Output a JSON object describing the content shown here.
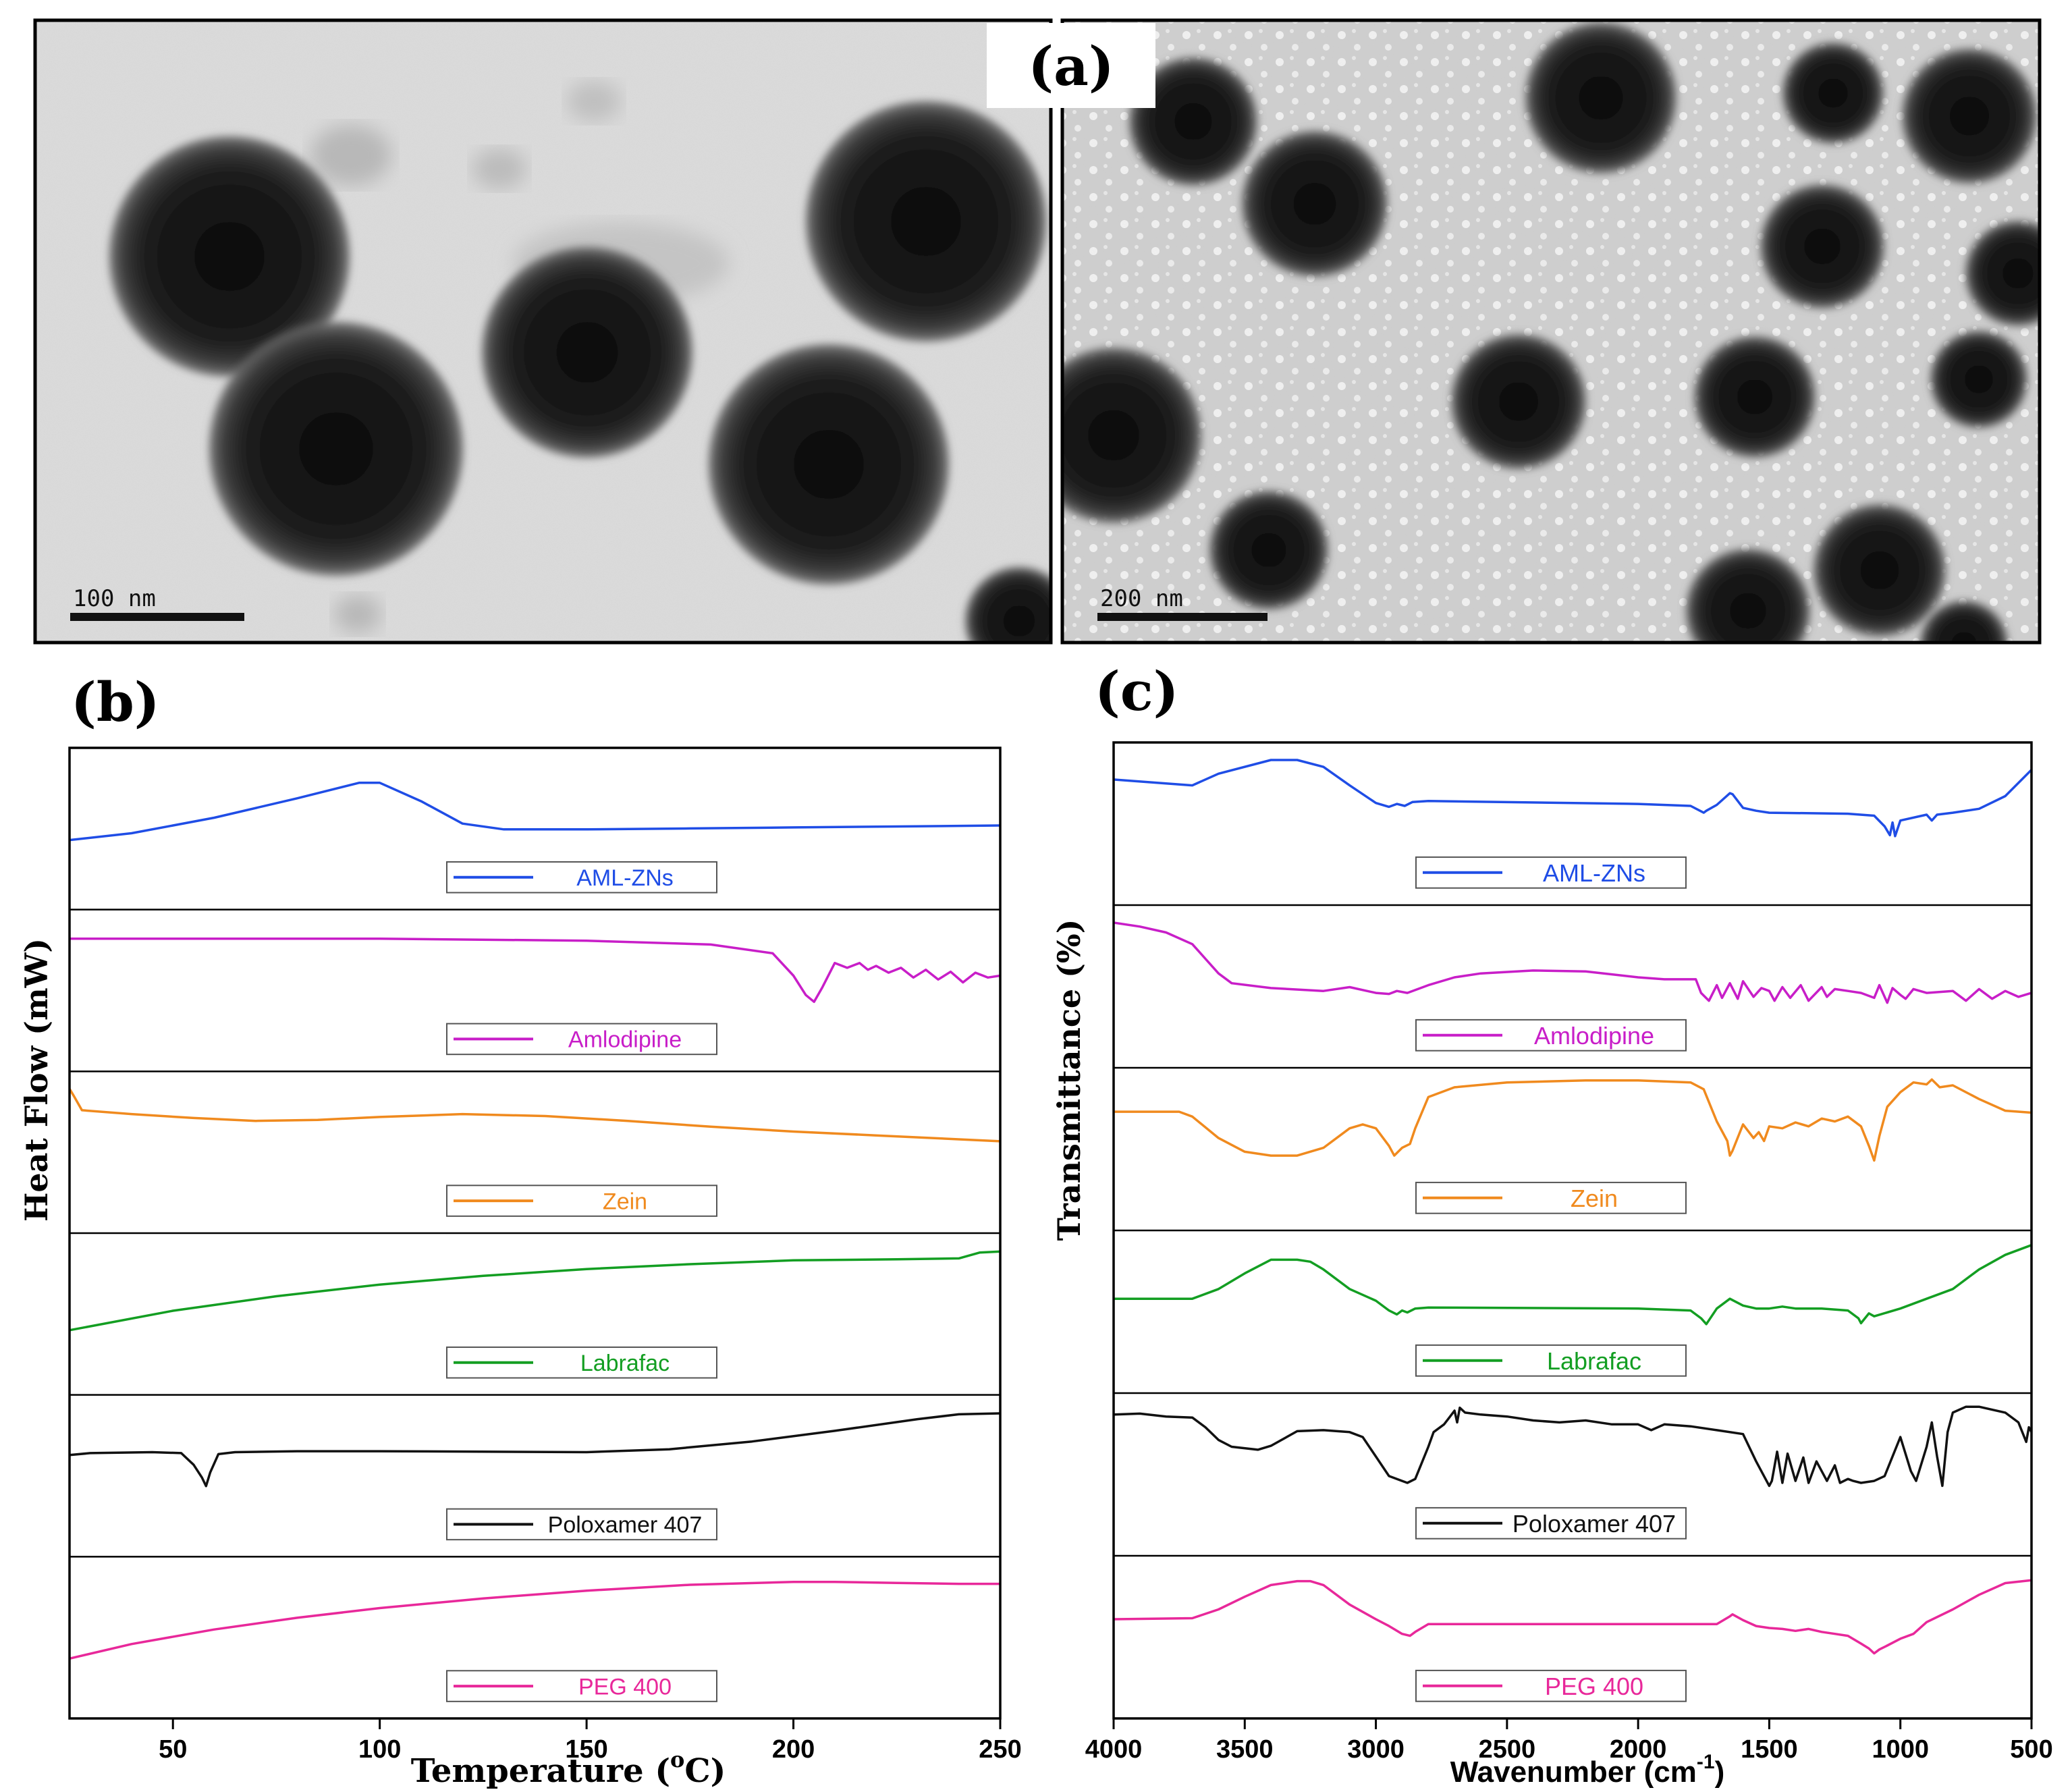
{
  "figure": {
    "panel_a": {
      "label": "(a)",
      "scale_bar_left": "100 nm",
      "scale_bar_right": "200 nm"
    }
  },
  "chart_data": [
    {
      "type": "line",
      "panel_label": "(b)",
      "title": "",
      "xlabel": "Temperature (",
      "xlabel_sup": "o",
      "xlabel_tail": "C)",
      "ylabel": "Heat Flow (mW)",
      "xlim": [
        25,
        250
      ],
      "xticks": [
        50,
        100,
        150,
        200,
        250
      ],
      "stacked": true,
      "series": [
        {
          "name": "AML-ZNs",
          "color": "#1f4de6",
          "x": [
            25,
            40,
            60,
            80,
            95,
            100,
            110,
            120,
            130,
            150,
            175,
            200,
            225,
            250
          ],
          "y": [
            0.15,
            0.22,
            0.38,
            0.58,
            0.74,
            0.74,
            0.55,
            0.32,
            0.26,
            0.26,
            0.27,
            0.28,
            0.29,
            0.3
          ]
        },
        {
          "name": "Amlodipine",
          "color": "#c81ec8",
          "x": [
            25,
            60,
            100,
            150,
            180,
            195,
            200,
            203,
            205,
            207,
            210,
            213,
            216,
            218,
            220,
            223,
            226,
            229,
            232,
            235,
            238,
            241,
            244,
            247,
            250
          ],
          "y": [
            0.8,
            0.8,
            0.8,
            0.78,
            0.74,
            0.65,
            0.42,
            0.22,
            0.15,
            0.3,
            0.55,
            0.5,
            0.55,
            0.48,
            0.52,
            0.45,
            0.5,
            0.4,
            0.48,
            0.38,
            0.46,
            0.35,
            0.45,
            0.4,
            0.42
          ]
        },
        {
          "name": "Zein",
          "color": "#f08a1e",
          "x": [
            25,
            26,
            28,
            40,
            55,
            70,
            85,
            100,
            120,
            140,
            160,
            180,
            200,
            220,
            240,
            250
          ],
          "y": [
            0.92,
            0.85,
            0.7,
            0.66,
            0.62,
            0.59,
            0.6,
            0.63,
            0.66,
            0.64,
            0.59,
            0.53,
            0.48,
            0.44,
            0.4,
            0.38
          ]
        },
        {
          "name": "Labrafac",
          "color": "#139e22",
          "x": [
            25,
            50,
            75,
            100,
            125,
            150,
            175,
            200,
            225,
            240,
            245,
            250
          ],
          "y": [
            0.1,
            0.3,
            0.45,
            0.57,
            0.66,
            0.73,
            0.78,
            0.82,
            0.83,
            0.84,
            0.9,
            0.91
          ]
        },
        {
          "name": "Poloxamer 407",
          "color": "#111111",
          "x": [
            25,
            30,
            45,
            52,
            55,
            57,
            58,
            59,
            61,
            65,
            80,
            100,
            150,
            170,
            190,
            210,
            230,
            240,
            250
          ],
          "y": [
            0.48,
            0.5,
            0.51,
            0.5,
            0.38,
            0.25,
            0.16,
            0.3,
            0.49,
            0.51,
            0.52,
            0.52,
            0.51,
            0.54,
            0.62,
            0.73,
            0.85,
            0.9,
            0.91
          ]
        },
        {
          "name": "PEG 400",
          "color": "#e8289a",
          "x": [
            25,
            40,
            60,
            80,
            100,
            125,
            150,
            175,
            200,
            210,
            225,
            240,
            250
          ],
          "y": [
            0.05,
            0.2,
            0.35,
            0.47,
            0.57,
            0.67,
            0.75,
            0.81,
            0.84,
            0.84,
            0.83,
            0.82,
            0.82
          ]
        }
      ]
    },
    {
      "type": "line",
      "panel_label": "(c)",
      "title": "",
      "xlabel": "Wavenumber (cm",
      "xlabel_sup": "-1",
      "xlabel_tail": ")",
      "ylabel": "Transmittance (%)",
      "xlim": [
        4000,
        500
      ],
      "xticks": [
        4000,
        3500,
        3000,
        2500,
        2000,
        1500,
        1000,
        500
      ],
      "stacked": true,
      "series": [
        {
          "name": "AML-ZNs",
          "color": "#1f4de6",
          "x": [
            4000,
            3800,
            3700,
            3600,
            3400,
            3300,
            3200,
            3100,
            3000,
            2950,
            2920,
            2890,
            2860,
            2800,
            2000,
            1800,
            1750,
            1740,
            1700,
            1650,
            1640,
            1600,
            1550,
            1500,
            1200,
            1100,
            1060,
            1040,
            1030,
            1020,
            1000,
            900,
            880,
            860,
            800,
            700,
            600,
            500
          ],
          "y": [
            0.72,
            0.68,
            0.66,
            0.78,
            0.92,
            0.92,
            0.85,
            0.66,
            0.48,
            0.44,
            0.47,
            0.45,
            0.49,
            0.5,
            0.47,
            0.45,
            0.38,
            0.4,
            0.46,
            0.58,
            0.57,
            0.43,
            0.4,
            0.38,
            0.37,
            0.35,
            0.24,
            0.15,
            0.28,
            0.14,
            0.3,
            0.36,
            0.3,
            0.36,
            0.38,
            0.42,
            0.55,
            0.82
          ]
        },
        {
          "name": "Amlodipine",
          "color": "#c81ec8",
          "x": [
            4000,
            3900,
            3800,
            3700,
            3650,
            3600,
            3550,
            3400,
            3200,
            3100,
            3000,
            2950,
            2920,
            2880,
            2800,
            2700,
            2600,
            2400,
            2200,
            2000,
            1900,
            1780,
            1760,
            1730,
            1700,
            1680,
            1650,
            1620,
            1600,
            1560,
            1530,
            1500,
            1480,
            1450,
            1420,
            1380,
            1350,
            1300,
            1280,
            1250,
            1200,
            1150,
            1100,
            1080,
            1050,
            1030,
            1000,
            980,
            950,
            900,
            800,
            750,
            700,
            650,
            600,
            550,
            500
          ],
          "y": [
            0.92,
            0.88,
            0.82,
            0.7,
            0.55,
            0.4,
            0.3,
            0.25,
            0.22,
            0.26,
            0.2,
            0.19,
            0.22,
            0.2,
            0.28,
            0.36,
            0.4,
            0.43,
            0.42,
            0.36,
            0.34,
            0.34,
            0.2,
            0.12,
            0.28,
            0.15,
            0.3,
            0.14,
            0.32,
            0.16,
            0.25,
            0.22,
            0.12,
            0.26,
            0.15,
            0.28,
            0.12,
            0.26,
            0.16,
            0.24,
            0.22,
            0.2,
            0.15,
            0.28,
            0.1,
            0.25,
            0.18,
            0.14,
            0.24,
            0.2,
            0.22,
            0.12,
            0.24,
            0.14,
            0.22,
            0.16,
            0.2
          ]
        },
        {
          "name": "Zein",
          "color": "#f08a1e",
          "x": [
            4000,
            3750,
            3700,
            3600,
            3500,
            3400,
            3300,
            3200,
            3100,
            3050,
            3000,
            2950,
            2930,
            2900,
            2870,
            2850,
            2800,
            2700,
            2500,
            2200,
            2000,
            1800,
            1750,
            1700,
            1660,
            1650,
            1640,
            1600,
            1560,
            1540,
            1520,
            1500,
            1450,
            1400,
            1350,
            1300,
            1250,
            1200,
            1150,
            1120,
            1100,
            1080,
            1050,
            1000,
            950,
            900,
            880,
            850,
            800,
            700,
            600,
            500
          ],
          "y": [
            0.65,
            0.65,
            0.6,
            0.38,
            0.24,
            0.2,
            0.2,
            0.28,
            0.48,
            0.52,
            0.48,
            0.3,
            0.2,
            0.28,
            0.32,
            0.48,
            0.8,
            0.9,
            0.95,
            0.97,
            0.97,
            0.95,
            0.88,
            0.55,
            0.35,
            0.2,
            0.25,
            0.52,
            0.38,
            0.44,
            0.35,
            0.5,
            0.48,
            0.54,
            0.5,
            0.58,
            0.55,
            0.6,
            0.5,
            0.3,
            0.15,
            0.4,
            0.7,
            0.85,
            0.95,
            0.93,
            0.98,
            0.9,
            0.92,
            0.78,
            0.66,
            0.64
          ]
        },
        {
          "name": "Labrafac",
          "color": "#139e22",
          "x": [
            4000,
            3700,
            3600,
            3500,
            3400,
            3300,
            3250,
            3200,
            3100,
            3000,
            2950,
            2920,
            2900,
            2880,
            2850,
            2800,
            2000,
            1800,
            1760,
            1740,
            1700,
            1650,
            1600,
            1550,
            1500,
            1450,
            1400,
            1300,
            1200,
            1160,
            1150,
            1120,
            1100,
            1000,
            900,
            800,
            700,
            600,
            500
          ],
          "y": [
            0.4,
            0.4,
            0.5,
            0.66,
            0.8,
            0.8,
            0.78,
            0.7,
            0.5,
            0.38,
            0.28,
            0.24,
            0.28,
            0.26,
            0.3,
            0.31,
            0.3,
            0.28,
            0.2,
            0.14,
            0.3,
            0.4,
            0.33,
            0.3,
            0.3,
            0.32,
            0.3,
            0.3,
            0.28,
            0.2,
            0.15,
            0.25,
            0.22,
            0.3,
            0.4,
            0.5,
            0.7,
            0.85,
            0.95
          ]
        },
        {
          "name": "Poloxamer 407",
          "color": "#111111",
          "x": [
            4000,
            3900,
            3800,
            3700,
            3650,
            3600,
            3550,
            3450,
            3400,
            3300,
            3200,
            3100,
            3050,
            3000,
            2950,
            2900,
            2880,
            2850,
            2800,
            2780,
            2740,
            2720,
            2700,
            2690,
            2680,
            2660,
            2600,
            2500,
            2400,
            2300,
            2200,
            2100,
            2000,
            1950,
            1900,
            1800,
            1700,
            1600,
            1550,
            1500,
            1490,
            1470,
            1450,
            1430,
            1400,
            1370,
            1350,
            1320,
            1280,
            1250,
            1230,
            1200,
            1180,
            1150,
            1100,
            1060,
            1000,
            960,
            940,
            900,
            880,
            860,
            840,
            820,
            800,
            750,
            700,
            600,
            550,
            520,
            510,
            500
          ],
          "y": [
            0.88,
            0.89,
            0.86,
            0.85,
            0.75,
            0.62,
            0.55,
            0.52,
            0.56,
            0.71,
            0.72,
            0.7,
            0.65,
            0.45,
            0.25,
            0.2,
            0.18,
            0.22,
            0.55,
            0.7,
            0.78,
            0.85,
            0.92,
            0.8,
            0.95,
            0.9,
            0.88,
            0.86,
            0.82,
            0.8,
            0.82,
            0.78,
            0.78,
            0.72,
            0.78,
            0.76,
            0.72,
            0.68,
            0.4,
            0.15,
            0.2,
            0.5,
            0.18,
            0.48,
            0.2,
            0.44,
            0.18,
            0.4,
            0.2,
            0.36,
            0.18,
            0.22,
            0.2,
            0.18,
            0.2,
            0.25,
            0.65,
            0.3,
            0.2,
            0.55,
            0.8,
            0.45,
            0.15,
            0.7,
            0.9,
            0.96,
            0.96,
            0.9,
            0.8,
            0.6,
            0.75,
            0.7
          ]
        },
        {
          "name": "PEG 400",
          "color": "#e8289a",
          "x": [
            4000,
            3700,
            3600,
            3500,
            3400,
            3300,
            3250,
            3200,
            3100,
            3000,
            2950,
            2900,
            2870,
            2850,
            2800,
            2000,
            1800,
            1700,
            1650,
            1640,
            1600,
            1550,
            1500,
            1450,
            1400,
            1350,
            1300,
            1250,
            1200,
            1150,
            1120,
            1100,
            1080,
            1050,
            1000,
            950,
            900,
            800,
            700,
            600,
            500
          ],
          "y": [
            0.45,
            0.46,
            0.55,
            0.68,
            0.8,
            0.84,
            0.84,
            0.8,
            0.6,
            0.45,
            0.38,
            0.3,
            0.28,
            0.32,
            0.4,
            0.4,
            0.4,
            0.4,
            0.48,
            0.5,
            0.44,
            0.38,
            0.36,
            0.35,
            0.33,
            0.35,
            0.32,
            0.3,
            0.28,
            0.2,
            0.15,
            0.1,
            0.14,
            0.18,
            0.25,
            0.3,
            0.42,
            0.55,
            0.7,
            0.82,
            0.85
          ]
        }
      ]
    }
  ]
}
